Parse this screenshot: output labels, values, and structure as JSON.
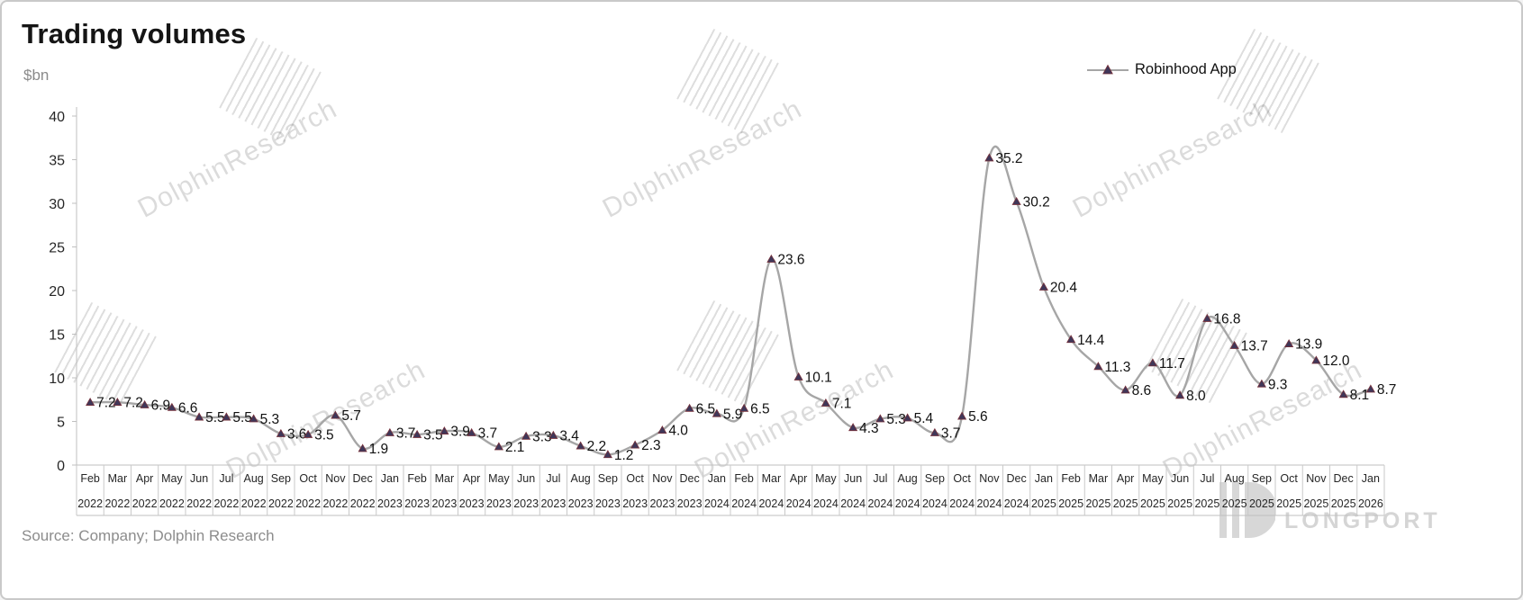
{
  "header": {
    "title": "Trading volumes",
    "unit": "$bn"
  },
  "legend": {
    "series_label": "Robinhood App"
  },
  "footer": {
    "source": "Source: Company; Dolphin Research",
    "brand": "LONGPORT"
  },
  "watermark": {
    "text": "DolphinResearch"
  },
  "chart_data": {
    "type": "line",
    "title": "Trading volumes",
    "xlabel": "",
    "ylabel": "$bn",
    "ylim": [
      0,
      40
    ],
    "yticks": [
      0,
      5,
      10,
      15,
      20,
      25,
      30,
      35,
      40
    ],
    "grid": false,
    "legend_position": "top-right",
    "line_color": "#a6a6a6",
    "marker_color": "#3f3759",
    "marker_edge": "#76303a",
    "label_color": "#111111",
    "axis_color": "#bfbfbf",
    "categories": [
      "Feb 2022",
      "Mar 2022",
      "Apr 2022",
      "May 2022",
      "Jun 2022",
      "Jul 2022",
      "Aug 2022",
      "Sep 2022",
      "Oct 2022",
      "Nov 2022",
      "Dec 2022",
      "Jan 2023",
      "Feb 2023",
      "Mar 2023",
      "Apr 2023",
      "May 2023",
      "Jun 2023",
      "Jul 2023",
      "Aug 2023",
      "Sep 2023",
      "Oct 2023",
      "Nov 2023",
      "Dec 2023",
      "Jan 2024",
      "Feb 2024",
      "Mar 2024",
      "Apr 2024",
      "May 2024",
      "Jun 2024",
      "Jul 2024",
      "Aug 2024",
      "Sep 2024",
      "Oct 2024",
      "Nov 2024",
      "Dec 2024",
      "Jan 2025",
      "Feb 2025",
      "Mar 2025",
      "Apr 2025",
      "May 2025",
      "Jun 2025",
      "Jul 2025",
      "Aug 2025",
      "Sep 2025",
      "Oct 2025",
      "Nov 2025",
      "Dec 2025",
      "Jan 2026"
    ],
    "series": [
      {
        "name": "Robinhood App",
        "values": [
          7.2,
          7.2,
          6.9,
          6.6,
          5.5,
          5.5,
          5.3,
          3.6,
          3.5,
          5.7,
          1.9,
          3.7,
          3.5,
          3.9,
          3.7,
          2.1,
          3.3,
          3.4,
          2.2,
          1.2,
          2.3,
          4.0,
          6.5,
          5.9,
          6.5,
          23.6,
          10.1,
          7.1,
          4.3,
          5.3,
          5.4,
          3.7,
          5.6,
          35.2,
          30.2,
          20.4,
          14.4,
          11.3,
          8.6,
          11.7,
          8.0,
          16.8,
          13.7,
          9.3,
          13.9,
          12.0,
          8.1,
          8.7
        ]
      }
    ]
  }
}
